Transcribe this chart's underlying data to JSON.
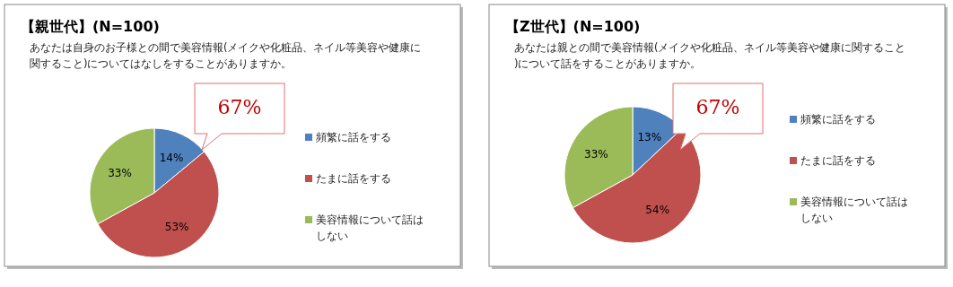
{
  "chart_data": [
    {
      "type": "pie",
      "title": "【親世代】(N=100)",
      "subtitle": "あなたは自身のお子様との間で美容情報(メイクや化粧品、ネイル等美容や健康に関すること)についてはなしをすることがありますか。",
      "categories": [
        "頻繁に話をする",
        "たまに話をする",
        "美容情報について話はしない"
      ],
      "values": [
        14,
        53,
        33
      ],
      "value_labels": [
        "14%",
        "53%",
        "33%"
      ],
      "colors": [
        "#4f81bd",
        "#c0504d",
        "#9bbb59"
      ],
      "legend": "right",
      "annotations": [
        "67%"
      ]
    },
    {
      "type": "pie",
      "title": "【Z世代】(N=100)",
      "subtitle": "あなたは親との間で美容情報(メイクや化粧品、ネイル等美容や健康に関すること)について話をすることがありますか。",
      "categories": [
        "頻繁に話をする",
        "たまに話をする",
        "美容情報について話はしない"
      ],
      "values": [
        13,
        54,
        33
      ],
      "value_labels": [
        "13%",
        "54%",
        "33%"
      ],
      "colors": [
        "#4f81bd",
        "#c0504d",
        "#9bbb59"
      ],
      "legend": "right",
      "annotations": [
        "67%"
      ]
    }
  ]
}
